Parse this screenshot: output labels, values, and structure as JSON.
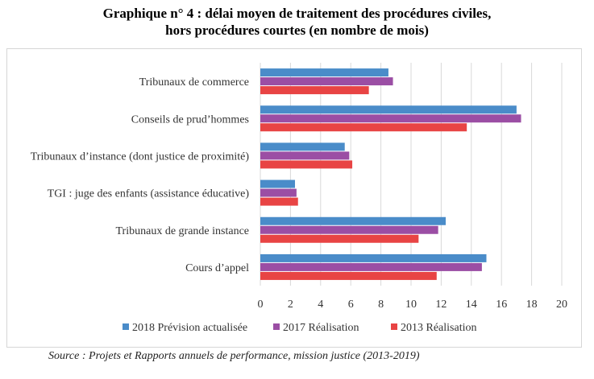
{
  "title_line1": "Graphique n° 4 : délai moyen de traitement des procédures civiles,",
  "title_line2": "hors procédures courtes (en nombre de mois)",
  "source": "Source : Projets et Rapports annuels de performance, mission justice (2013-2019)",
  "colors": {
    "s2018": "#4a8cc9",
    "s2017": "#9b4ea4",
    "s2013": "#e84444",
    "grid": "#d9d9d9"
  },
  "chart_data": {
    "type": "bar",
    "orientation": "horizontal",
    "title": "Graphique n° 4 : délai moyen de traitement des procédures civiles, hors procédures courtes (en nombre de mois)",
    "categories": [
      "Tribunaux de commerce",
      "Conseils de prud’hommes",
      "Tribunaux d’instance (dont justice de proximité)",
      "TGI : juge des enfants (assistance éducative)",
      "Tribunaux de grande instance",
      "Cours d’appel"
    ],
    "series": [
      {
        "name": "2018 Prévision actualisée",
        "values": [
          8.5,
          17.0,
          5.6,
          2.3,
          12.3,
          15.0
        ]
      },
      {
        "name": "2017 Réalisation",
        "values": [
          8.8,
          17.3,
          5.9,
          2.4,
          11.8,
          14.7
        ]
      },
      {
        "name": "2013 Réalisation",
        "values": [
          7.2,
          13.7,
          6.1,
          2.5,
          10.5,
          11.7
        ]
      }
    ],
    "xlim": [
      0,
      20
    ],
    "xticks": [
      0,
      2,
      4,
      6,
      8,
      10,
      12,
      14,
      16,
      18,
      20
    ],
    "grid": true,
    "legend": "bottom"
  }
}
